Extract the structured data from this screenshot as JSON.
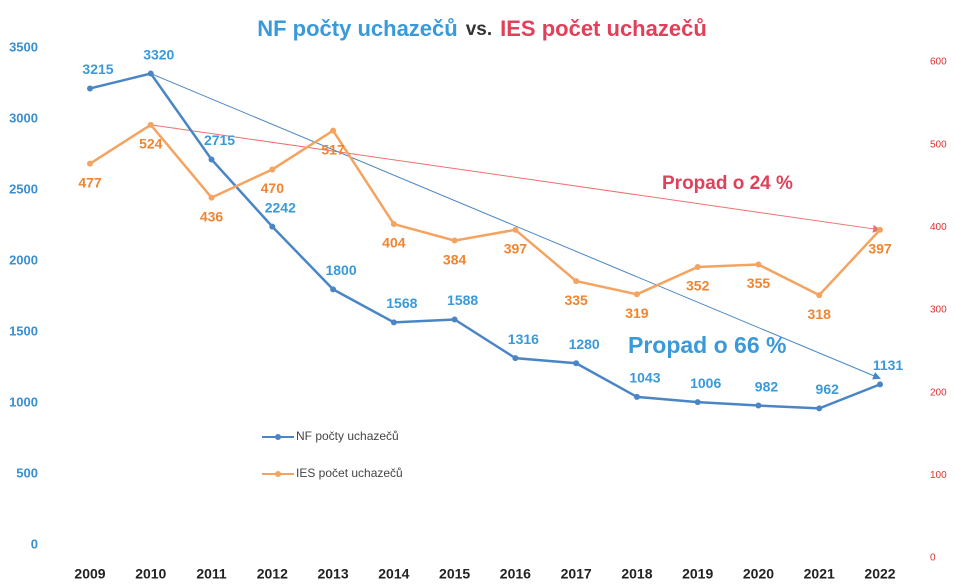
{
  "chart_data": {
    "type": "line",
    "title_parts": [
      {
        "text": "NF počty uchazečů",
        "color": "#3a9ad9"
      },
      {
        "text": "vs.",
        "color": "#333333"
      },
      {
        "text": "IES počet uchazečů",
        "color": "#e0405a"
      }
    ],
    "categories": [
      "2009",
      "2010",
      "2011",
      "2012",
      "2013",
      "2014",
      "2015",
      "2016",
      "2017",
      "2018",
      "2019",
      "2020",
      "2021",
      "2022"
    ],
    "series": [
      {
        "name": "NF počty uchazečů",
        "color": "#4a86c5",
        "label_color": "#3a9ad9",
        "axis": "y",
        "values": [
          3215,
          3320,
          2715,
          2242,
          1800,
          1568,
          1588,
          1316,
          1280,
          1043,
          1006,
          982,
          962,
          1131
        ]
      },
      {
        "name": "IES počet uchazečů",
        "color": "#f4a460",
        "label_color": "#f0852f",
        "axis": "y2",
        "values": [
          477,
          524,
          436,
          470,
          517,
          404,
          384,
          397,
          335,
          319,
          352,
          355,
          318,
          397
        ]
      }
    ],
    "ylim": [
      0,
      3500
    ],
    "yticks": [
      0,
      500,
      1000,
      1500,
      2000,
      2500,
      3000,
      3500
    ],
    "y2lim": [
      0,
      600
    ],
    "y2ticks": [
      0,
      100,
      200,
      300,
      400,
      500,
      600
    ],
    "legend": "left",
    "annotations": [
      {
        "text": "Propad o 24 %",
        "color": "#e0405a"
      },
      {
        "text": "Propad o 66 %",
        "color": "#3a9ad9"
      }
    ]
  }
}
